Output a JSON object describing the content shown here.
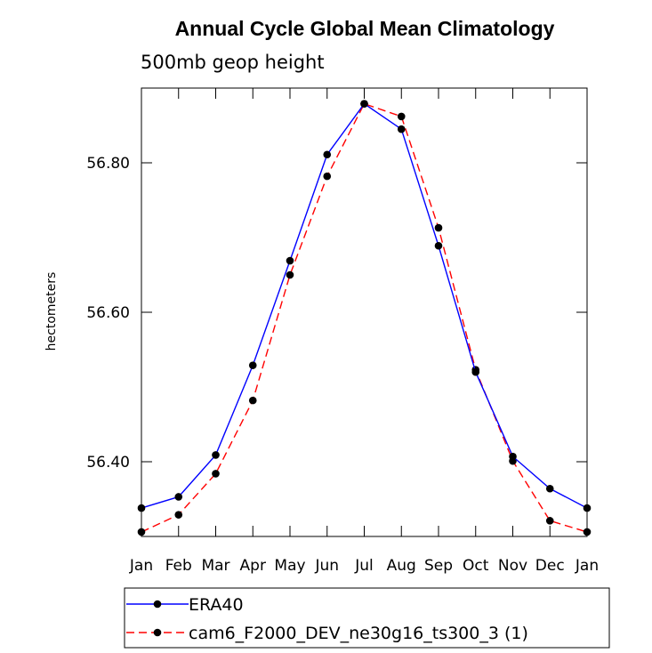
{
  "chart_data": {
    "type": "line",
    "title": "Annual Cycle Global Mean Climatology",
    "subtitle": "500mb geop height",
    "xlabel": "",
    "ylabel": "hectometers",
    "categories": [
      "Jan",
      "Feb",
      "Mar",
      "Apr",
      "May",
      "Jun",
      "Jul",
      "Aug",
      "Sep",
      "Oct",
      "Nov",
      "Dec",
      "Jan"
    ],
    "ylim": [
      56.3,
      56.9
    ],
    "yticks": [
      56.4,
      56.6,
      56.8
    ],
    "ytick_labels": [
      "56.40",
      "56.60",
      "56.80"
    ],
    "grid": false,
    "legend_position": "bottom",
    "series": [
      {
        "name": "ERA40",
        "color": "#0000ff",
        "dash": "solid",
        "marker": "filled-circle",
        "values": [
          56.338,
          56.353,
          56.409,
          56.529,
          56.669,
          56.811,
          56.879,
          56.845,
          56.689,
          56.52,
          56.407,
          56.364,
          56.338
        ]
      },
      {
        "name": "cam6_F2000_DEV_ne30g16_ts300_3 (1)",
        "color": "#ff0000",
        "dash": "dashed",
        "marker": "filled-circle",
        "values": [
          56.306,
          56.329,
          56.384,
          56.482,
          56.65,
          56.782,
          56.879,
          56.862,
          56.713,
          56.523,
          56.401,
          56.321,
          56.306
        ]
      }
    ]
  }
}
